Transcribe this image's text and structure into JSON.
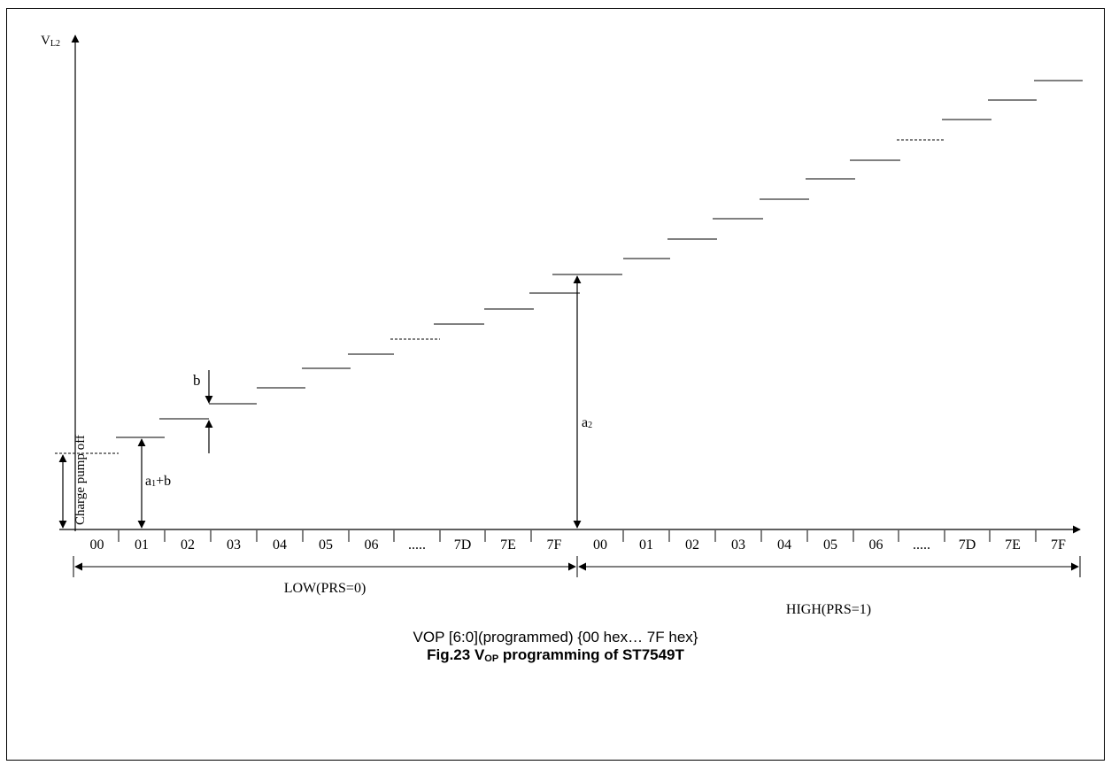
{
  "diagram": {
    "y_axis_label_main": "V",
    "y_axis_label_sub": "L2",
    "charge_pump_label": "Charge pump off",
    "label_b": "b",
    "label_a1": "a",
    "label_a1_sub": "1",
    "label_a1_suffix": "+b",
    "label_a2": "a",
    "label_a2_sub": "2",
    "low_cells": [
      "00",
      "01",
      "02",
      "03",
      "04",
      "05",
      "06",
      ".....",
      "7D",
      "7E",
      "7F"
    ],
    "high_cells": [
      "00",
      "01",
      "02",
      "03",
      "04",
      "05",
      "06",
      ".....",
      "7D",
      "7E",
      "7F"
    ],
    "low_range_label": "LOW(PRS=0)",
    "high_range_label": "HIGH(PRS=1)"
  },
  "caption": {
    "line1": "VOP [6:0](programmed) {00 hex… 7F hex}",
    "line2_prefix": "Fig.23 V",
    "line2_sub": "OP",
    "line2_suffix": " programming of ST7549T"
  }
}
